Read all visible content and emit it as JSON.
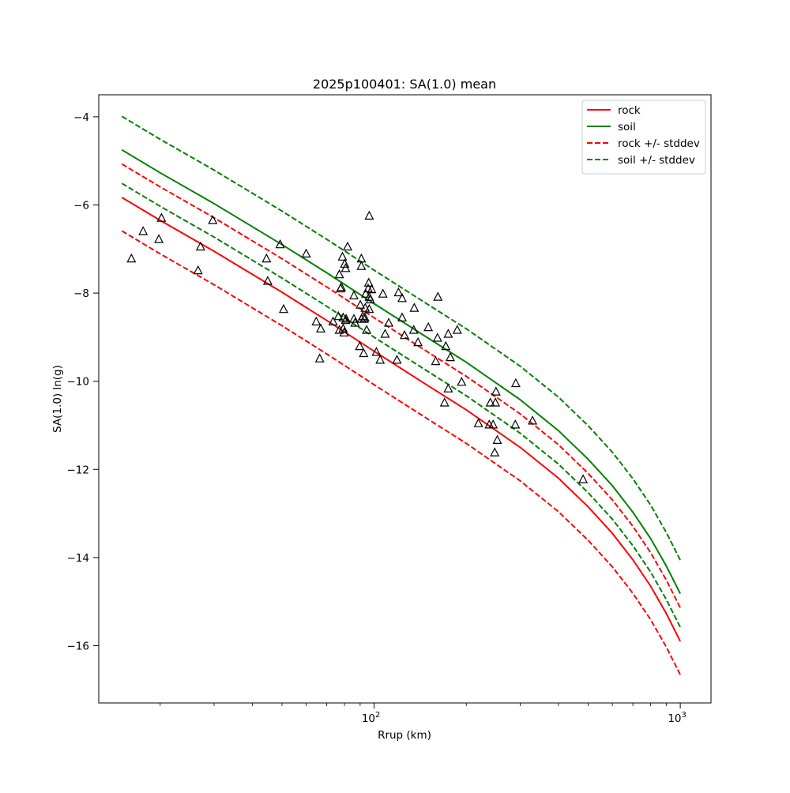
{
  "chart_data": {
    "type": "scatter",
    "title": "2025p100401: SA(1.0) mean",
    "xlabel": "Rrup (km)",
    "ylabel": "SA(1.0) ln(g)",
    "xscale": "log",
    "xlim": [
      12.6,
      1260
    ],
    "ylim": [
      -17.3,
      -3.5
    ],
    "grid": false,
    "legend_placement": "top-right",
    "x_ticks": [
      {
        "value": 100,
        "base": "10",
        "exp": "2"
      },
      {
        "value": 1000,
        "base": "10",
        "exp": "3"
      }
    ],
    "y_ticks": [
      {
        "value": -4,
        "label": "−4"
      },
      {
        "value": -6,
        "label": "−6"
      },
      {
        "value": -8,
        "label": "−8"
      },
      {
        "value": -10,
        "label": "−10"
      },
      {
        "value": -12,
        "label": "−12"
      },
      {
        "value": -14,
        "label": "−14"
      },
      {
        "value": -16,
        "label": "−16"
      }
    ],
    "series": [
      {
        "name": "rock",
        "color": "#ff0000",
        "style": "solid",
        "x": [
          15,
          20,
          30,
          50,
          70,
          100,
          150,
          200,
          300,
          400,
          500,
          600,
          700,
          800,
          900,
          1000
        ],
        "y": [
          -5.83,
          -6.35,
          -7.05,
          -7.98,
          -8.62,
          -9.32,
          -10.1,
          -10.65,
          -11.5,
          -12.2,
          -12.85,
          -13.45,
          -14.05,
          -14.65,
          -15.27,
          -15.9
        ]
      },
      {
        "name": "soil",
        "color": "#008000",
        "style": "solid",
        "x": [
          15,
          20,
          30,
          50,
          70,
          100,
          150,
          200,
          300,
          400,
          500,
          600,
          700,
          800,
          900,
          1000
        ],
        "y": [
          -4.75,
          -5.27,
          -5.97,
          -6.9,
          -7.54,
          -8.24,
          -9.02,
          -9.57,
          -10.42,
          -11.12,
          -11.77,
          -12.37,
          -12.97,
          -13.57,
          -14.19,
          -14.82
        ]
      },
      {
        "name": "rock +/- stddev",
        "color": "#ff0000",
        "style": "dashed",
        "x": [
          15,
          20,
          30,
          50,
          70,
          100,
          150,
          200,
          300,
          400,
          500,
          600,
          700,
          800,
          900,
          1000
        ],
        "y": [
          -5.07,
          -5.59,
          -6.29,
          -7.22,
          -7.86,
          -8.56,
          -9.34,
          -9.89,
          -10.74,
          -11.44,
          -12.09,
          -12.69,
          -13.29,
          -13.89,
          -14.51,
          -15.14
        ]
      },
      {
        "name": "",
        "color": "#ff0000",
        "style": "dashed",
        "x": [
          15,
          20,
          30,
          50,
          70,
          100,
          150,
          200,
          300,
          400,
          500,
          600,
          700,
          800,
          900,
          1000
        ],
        "y": [
          -6.59,
          -7.11,
          -7.81,
          -8.74,
          -9.38,
          -10.08,
          -10.86,
          -11.41,
          -12.26,
          -12.96,
          -13.61,
          -14.21,
          -14.81,
          -15.41,
          -16.03,
          -16.66
        ]
      },
      {
        "name": "soil +/- stddev",
        "color": "#008000",
        "style": "dashed",
        "x": [
          15,
          20,
          30,
          50,
          70,
          100,
          150,
          200,
          300,
          400,
          500,
          600,
          700,
          800,
          900,
          1000
        ],
        "y": [
          -3.99,
          -4.51,
          -5.21,
          -6.14,
          -6.78,
          -7.48,
          -8.26,
          -8.81,
          -9.66,
          -10.36,
          -11.01,
          -11.61,
          -12.21,
          -12.81,
          -13.43,
          -14.06
        ]
      },
      {
        "name": "",
        "color": "#008000",
        "style": "dashed",
        "x": [
          15,
          20,
          30,
          50,
          70,
          100,
          150,
          200,
          300,
          400,
          500,
          600,
          700,
          800,
          900,
          1000
        ],
        "y": [
          -5.51,
          -6.03,
          -6.73,
          -7.66,
          -8.3,
          -9.0,
          -9.78,
          -10.33,
          -11.18,
          -11.88,
          -12.53,
          -13.13,
          -13.73,
          -14.33,
          -14.95,
          -15.58
        ]
      }
    ],
    "observations": {
      "marker": "triangle",
      "color": "#000000",
      "points": [
        [
          16.1,
          -7.22
        ],
        [
          17.6,
          -6.6
        ],
        [
          19.8,
          -6.78
        ],
        [
          20.2,
          -6.3
        ],
        [
          26.6,
          -7.49
        ],
        [
          27.1,
          -6.95
        ],
        [
          29.7,
          -6.35
        ],
        [
          44.5,
          -7.22
        ],
        [
          44.9,
          -7.73
        ],
        [
          49.3,
          -6.9
        ],
        [
          50.6,
          -8.37
        ],
        [
          60.0,
          -7.11
        ],
        [
          64.7,
          -8.65
        ],
        [
          66.4,
          -9.49
        ],
        [
          66.9,
          -8.81
        ],
        [
          73.4,
          -8.65
        ],
        [
          76.4,
          -8.53
        ],
        [
          77.0,
          -8.84
        ],
        [
          77.0,
          -7.58
        ],
        [
          77.7,
          -7.9
        ],
        [
          78.1,
          -7.87
        ],
        [
          78.8,
          -7.18
        ],
        [
          79.2,
          -8.81
        ],
        [
          79.2,
          -8.56
        ],
        [
          79.8,
          -8.9
        ],
        [
          80.1,
          -7.34
        ],
        [
          80.7,
          -7.44
        ],
        [
          80.7,
          -8.62
        ],
        [
          81.0,
          -8.59
        ],
        [
          81.9,
          -6.95
        ],
        [
          85.9,
          -8.59
        ],
        [
          85.9,
          -8.06
        ],
        [
          86.6,
          -8.68
        ],
        [
          89.7,
          -9.21
        ],
        [
          90.1,
          -8.27
        ],
        [
          90.8,
          -7.22
        ],
        [
          90.8,
          -7.39
        ],
        [
          91.1,
          -8.59
        ],
        [
          91.8,
          -8.53
        ],
        [
          92.4,
          -9.37
        ],
        [
          92.8,
          -8.59
        ],
        [
          93.2,
          -8.56
        ],
        [
          93.5,
          -8.34
        ],
        [
          93.9,
          -8.02
        ],
        [
          94.5,
          -8.84
        ],
        [
          95.6,
          -7.9
        ],
        [
          96.0,
          -7.77
        ],
        [
          96.4,
          -8.09
        ],
        [
          96.4,
          -8.37
        ],
        [
          96.4,
          -6.25
        ],
        [
          97.1,
          -8.15
        ],
        [
          98.1,
          -7.92
        ],
        [
          101.7,
          -9.34
        ],
        [
          104.6,
          -9.52
        ],
        [
          106.8,
          -8.02
        ],
        [
          108.6,
          -8.93
        ],
        [
          111.6,
          -8.68
        ],
        [
          118.7,
          -9.52
        ],
        [
          120.1,
          -7.99
        ],
        [
          123.4,
          -8.56
        ],
        [
          123.4,
          -8.12
        ],
        [
          125.6,
          -8.96
        ],
        [
          134.7,
          -8.84
        ],
        [
          135.2,
          -8.34
        ],
        [
          139.1,
          -9.12
        ],
        [
          150.2,
          -8.78
        ],
        [
          158.9,
          -9.55
        ],
        [
          161.0,
          -9.02
        ],
        [
          161.5,
          -8.09
        ],
        [
          169.8,
          -10.49
        ],
        [
          171.4,
          -9.21
        ],
        [
          174.6,
          -10.17
        ],
        [
          174.6,
          -8.93
        ],
        [
          177.3,
          -9.46
        ],
        [
          186.8,
          -8.84
        ],
        [
          193.0,
          -10.02
        ],
        [
          219.1,
          -10.96
        ],
        [
          237.7,
          -10.99
        ],
        [
          239.6,
          -10.49
        ],
        [
          244.7,
          -10.99
        ],
        [
          247.6,
          -11.62
        ],
        [
          249.0,
          -10.49
        ],
        [
          250.0,
          -10.24
        ],
        [
          252.5,
          -11.34
        ],
        [
          289.2,
          -10.99
        ],
        [
          290.2,
          -10.05
        ],
        [
          329.1,
          -10.9
        ],
        [
          481.4,
          -12.23
        ]
      ]
    }
  }
}
